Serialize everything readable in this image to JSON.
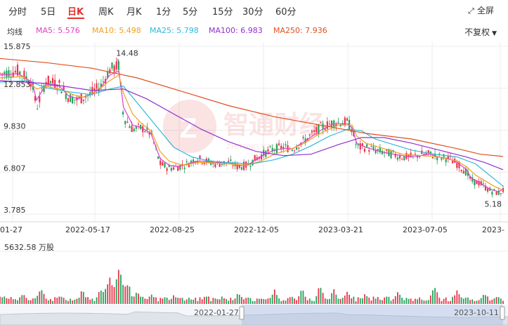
{
  "tabs": [
    {
      "label": "分时",
      "active": false
    },
    {
      "label": "5日",
      "active": false
    },
    {
      "label": "日K",
      "active": true
    },
    {
      "label": "周K",
      "active": false
    },
    {
      "label": "月K",
      "active": false
    },
    {
      "label": "1分",
      "active": false
    },
    {
      "label": "5分",
      "active": false
    },
    {
      "label": "15分",
      "active": false
    },
    {
      "label": "30分",
      "active": false
    },
    {
      "label": "60分",
      "active": false
    }
  ],
  "fullscreen_label": "全屏",
  "adjust_label": "不复权",
  "ma_row": {
    "label": "均线",
    "items": [
      {
        "text": "MA5: 5.576",
        "color": "#e040c8"
      },
      {
        "text": "MA10: 5.498",
        "color": "#f0a020"
      },
      {
        "text": "MA25: 5.798",
        "color": "#30b8d8"
      },
      {
        "text": "MA100: 6.983",
        "color": "#9030d0"
      },
      {
        "text": "MA250: 7.936",
        "color": "#e05020"
      }
    ]
  },
  "chart_data": {
    "type": "candlestick",
    "y_ticks": [
      "15.875",
      "12.853",
      "9.830",
      "6.807",
      "3.785"
    ],
    "ylim": [
      3.785,
      15.875
    ],
    "x_ticks": [
      "01-27",
      "2022-05-17",
      "2022-08-25",
      "2022-12-05",
      "2023-03-21",
      "2023-07-05",
      "2023-"
    ],
    "annotations": {
      "high": "14.48",
      "low": "5.18"
    },
    "series": [
      {
        "name": "price",
        "color": "#e03040",
        "values": [
          [
            0,
            13.9
          ],
          [
            4,
            14.1
          ],
          [
            7,
            13.3
          ],
          [
            8,
            11.4
          ],
          [
            10,
            13.4
          ],
          [
            13,
            13.1
          ],
          [
            15,
            12.2
          ],
          [
            17,
            12.0
          ],
          [
            20,
            12.5
          ],
          [
            22,
            13.0
          ],
          [
            24,
            14.2
          ],
          [
            26,
            14.48
          ],
          [
            27,
            10.8
          ],
          [
            29,
            9.9
          ],
          [
            31,
            10.0
          ],
          [
            33,
            9.6
          ],
          [
            35,
            7.4
          ],
          [
            37,
            7.1
          ],
          [
            39,
            7.2
          ],
          [
            41,
            7.4
          ],
          [
            43,
            7.8
          ],
          [
            45,
            7.6
          ],
          [
            47,
            7.4
          ],
          [
            50,
            7.5
          ],
          [
            52,
            7.2
          ],
          [
            54,
            7.3
          ],
          [
            56,
            7.8
          ],
          [
            58,
            8.2
          ],
          [
            60,
            8.5
          ],
          [
            62,
            8.6
          ],
          [
            64,
            8.5
          ],
          [
            67,
            9.2
          ],
          [
            70,
            10.0
          ],
          [
            73,
            10.4
          ],
          [
            76,
            10.4
          ],
          [
            77,
            9.9
          ],
          [
            78,
            8.6
          ],
          [
            80,
            8.6
          ],
          [
            83,
            8.3
          ],
          [
            86,
            8.1
          ],
          [
            88,
            7.9
          ],
          [
            90,
            7.9
          ],
          [
            92,
            8.1
          ],
          [
            94,
            8.1
          ],
          [
            96,
            7.9
          ],
          [
            98,
            7.8
          ],
          [
            100,
            7.4
          ],
          [
            102,
            6.8
          ],
          [
            103,
            6.2
          ],
          [
            105,
            6.0
          ],
          [
            107,
            5.5
          ],
          [
            109,
            5.3
          ],
          [
            110,
            5.5
          ]
        ]
      },
      {
        "name": "MA5",
        "color": "#e040c8",
        "values": [
          [
            0,
            13.8
          ],
          [
            4,
            13.9
          ],
          [
            7,
            13.3
          ],
          [
            8,
            12.0
          ],
          [
            10,
            13.1
          ],
          [
            13,
            13.0
          ],
          [
            15,
            12.3
          ],
          [
            17,
            12.1
          ],
          [
            20,
            12.4
          ],
          [
            22,
            12.9
          ],
          [
            24,
            13.8
          ],
          [
            26,
            14.1
          ],
          [
            27,
            11.5
          ],
          [
            29,
            10.2
          ],
          [
            31,
            10.0
          ],
          [
            33,
            9.6
          ],
          [
            35,
            7.8
          ],
          [
            37,
            7.3
          ],
          [
            39,
            7.2
          ],
          [
            41,
            7.4
          ],
          [
            43,
            7.6
          ],
          [
            45,
            7.6
          ],
          [
            47,
            7.5
          ],
          [
            50,
            7.5
          ],
          [
            52,
            7.3
          ],
          [
            54,
            7.3
          ],
          [
            56,
            7.7
          ],
          [
            58,
            8.1
          ],
          [
            60,
            8.4
          ],
          [
            62,
            8.5
          ],
          [
            64,
            8.5
          ],
          [
            67,
            9.1
          ],
          [
            70,
            9.8
          ],
          [
            73,
            10.3
          ],
          [
            76,
            10.3
          ],
          [
            77,
            10.0
          ],
          [
            78,
            8.9
          ],
          [
            80,
            8.6
          ],
          [
            83,
            8.3
          ],
          [
            86,
            8.1
          ],
          [
            88,
            8.0
          ],
          [
            90,
            7.9
          ],
          [
            92,
            8.0
          ],
          [
            94,
            8.1
          ],
          [
            96,
            7.9
          ],
          [
            98,
            7.8
          ],
          [
            100,
            7.5
          ],
          [
            102,
            7.0
          ],
          [
            103,
            6.4
          ],
          [
            105,
            6.0
          ],
          [
            107,
            5.6
          ],
          [
            109,
            5.4
          ],
          [
            110,
            5.576
          ]
        ]
      },
      {
        "name": "MA10",
        "color": "#f0a020",
        "values": [
          [
            0,
            13.6
          ],
          [
            5,
            13.7
          ],
          [
            8,
            12.8
          ],
          [
            10,
            13.0
          ],
          [
            13,
            12.8
          ],
          [
            16,
            12.4
          ],
          [
            18,
            12.2
          ],
          [
            21,
            12.6
          ],
          [
            24,
            13.4
          ],
          [
            26,
            13.8
          ],
          [
            27,
            12.5
          ],
          [
            29,
            11.0
          ],
          [
            31,
            10.3
          ],
          [
            33,
            9.8
          ],
          [
            35,
            8.3
          ],
          [
            37,
            7.6
          ],
          [
            40,
            7.3
          ],
          [
            43,
            7.5
          ],
          [
            46,
            7.5
          ],
          [
            50,
            7.4
          ],
          [
            54,
            7.3
          ],
          [
            57,
            7.6
          ],
          [
            60,
            8.1
          ],
          [
            63,
            8.4
          ],
          [
            66,
            8.8
          ],
          [
            70,
            9.6
          ],
          [
            74,
            10.2
          ],
          [
            77,
            10.2
          ],
          [
            78,
            9.4
          ],
          [
            80,
            8.9
          ],
          [
            84,
            8.5
          ],
          [
            88,
            8.1
          ],
          [
            92,
            8.0
          ],
          [
            96,
            7.9
          ],
          [
            100,
            7.6
          ],
          [
            102,
            7.2
          ],
          [
            104,
            6.6
          ],
          [
            106,
            6.2
          ],
          [
            108,
            5.8
          ],
          [
            110,
            5.498
          ]
        ]
      },
      {
        "name": "MA25",
        "color": "#30b8d8",
        "values": [
          [
            0,
            13.3
          ],
          [
            6,
            13.4
          ],
          [
            10,
            12.9
          ],
          [
            15,
            12.6
          ],
          [
            20,
            12.4
          ],
          [
            24,
            12.8
          ],
          [
            27,
            13.0
          ],
          [
            29,
            12.2
          ],
          [
            32,
            11.0
          ],
          [
            35,
            9.8
          ],
          [
            38,
            8.6
          ],
          [
            42,
            7.9
          ],
          [
            46,
            7.6
          ],
          [
            50,
            7.5
          ],
          [
            55,
            7.4
          ],
          [
            60,
            7.7
          ],
          [
            64,
            8.1
          ],
          [
            68,
            8.7
          ],
          [
            72,
            9.4
          ],
          [
            76,
            9.9
          ],
          [
            79,
            9.8
          ],
          [
            82,
            9.2
          ],
          [
            86,
            8.8
          ],
          [
            90,
            8.4
          ],
          [
            95,
            8.1
          ],
          [
            100,
            7.9
          ],
          [
            104,
            7.4
          ],
          [
            107,
            6.6
          ],
          [
            110,
            5.798
          ]
        ]
      },
      {
        "name": "MA100",
        "color": "#9030d0",
        "values": [
          [
            0,
            13.4
          ],
          [
            10,
            13.2
          ],
          [
            20,
            12.7
          ],
          [
            27,
            12.8
          ],
          [
            32,
            12.1
          ],
          [
            38,
            11.0
          ],
          [
            44,
            9.9
          ],
          [
            50,
            9.0
          ],
          [
            56,
            8.3
          ],
          [
            62,
            8.0
          ],
          [
            68,
            8.1
          ],
          [
            74,
            8.8
          ],
          [
            79,
            9.3
          ],
          [
            84,
            9.3
          ],
          [
            90,
            8.9
          ],
          [
            96,
            8.4
          ],
          [
            102,
            7.9
          ],
          [
            106,
            7.5
          ],
          [
            110,
            6.983
          ]
        ]
      },
      {
        "name": "MA250",
        "color": "#e05020",
        "values": [
          [
            0,
            15.0
          ],
          [
            10,
            14.7
          ],
          [
            20,
            14.3
          ],
          [
            30,
            13.6
          ],
          [
            40,
            12.6
          ],
          [
            50,
            11.6
          ],
          [
            60,
            10.8
          ],
          [
            70,
            10.2
          ],
          [
            80,
            9.6
          ],
          [
            90,
            9.2
          ],
          [
            100,
            8.5
          ],
          [
            105,
            8.1
          ],
          [
            110,
            7.936
          ]
        ]
      }
    ],
    "volume": {
      "label": "5632.58 万股",
      "spikes": [
        [
          1,
          0.2
        ],
        [
          5,
          0.25
        ],
        [
          9,
          0.35
        ],
        [
          13,
          0.2
        ],
        [
          18,
          0.3
        ],
        [
          22,
          0.4
        ],
        [
          24,
          0.75
        ],
        [
          26,
          1.0
        ],
        [
          27,
          0.55
        ],
        [
          28,
          0.45
        ],
        [
          30,
          0.35
        ],
        [
          33,
          0.25
        ],
        [
          38,
          0.2
        ],
        [
          45,
          0.2
        ],
        [
          52,
          0.25
        ],
        [
          60,
          0.3
        ],
        [
          66,
          0.35
        ],
        [
          70,
          0.45
        ],
        [
          73,
          0.35
        ],
        [
          76,
          0.3
        ],
        [
          80,
          0.25
        ],
        [
          87,
          0.3
        ],
        [
          95,
          0.4
        ],
        [
          100,
          0.3
        ],
        [
          106,
          0.25
        ],
        [
          109,
          0.2
        ]
      ]
    },
    "navigator": {
      "start_label": "2022-01-27",
      "end_label": "2023-10-11"
    }
  }
}
